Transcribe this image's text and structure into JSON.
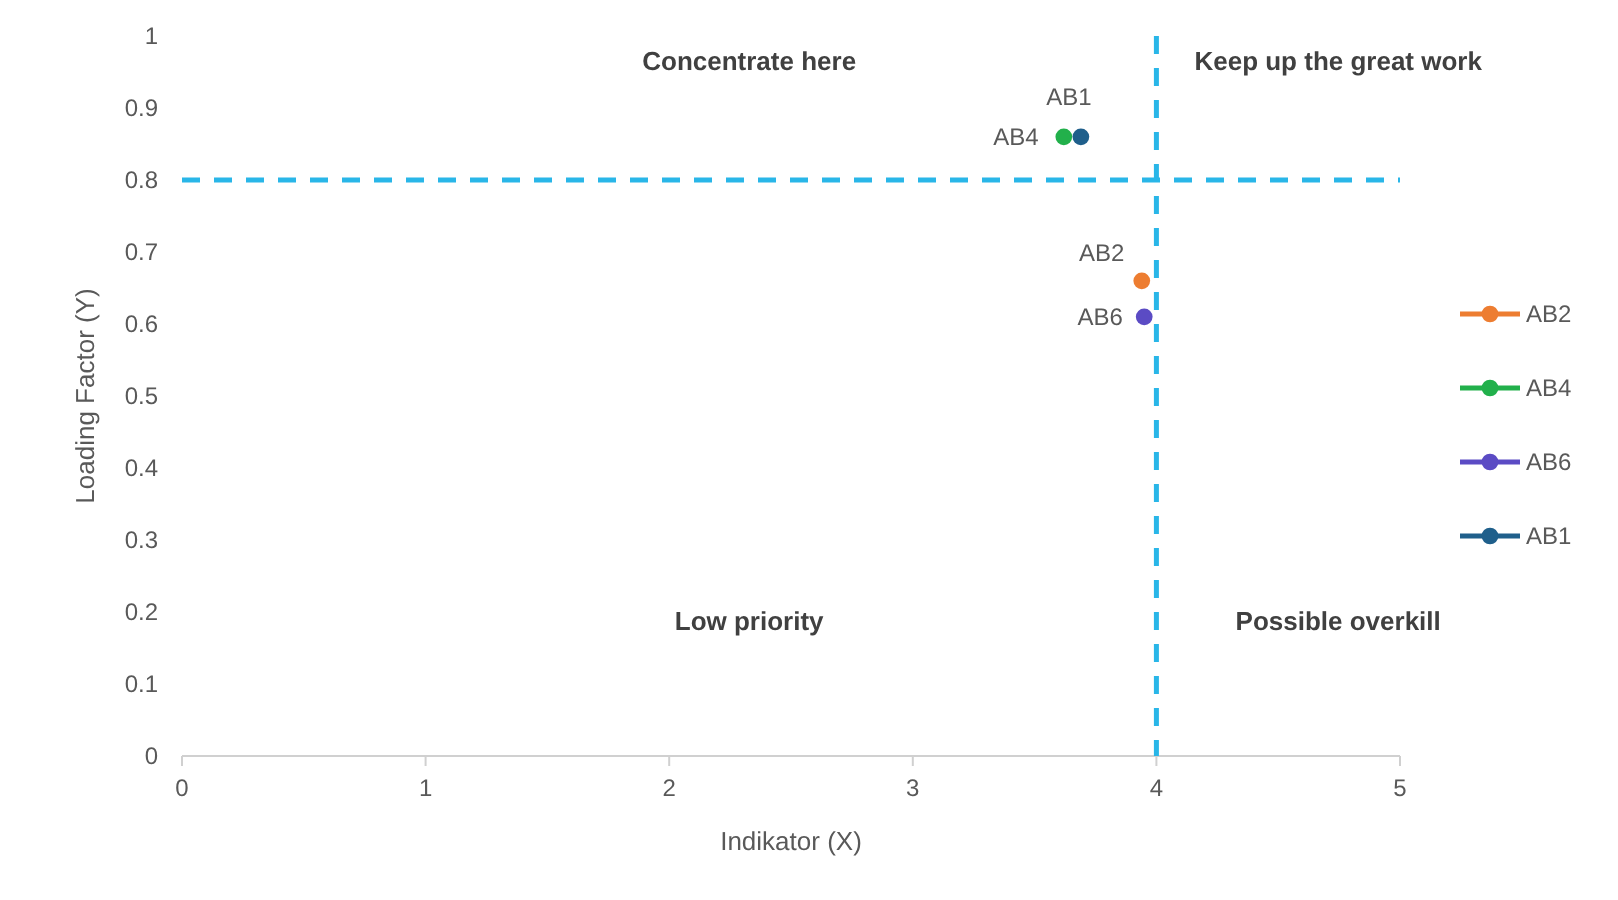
{
  "chart_data": {
    "type": "scatter",
    "xlabel": "Indikator (X)",
    "ylabel": "Loading Factor (Y)",
    "xlim": [
      0,
      5
    ],
    "xticks": [
      0,
      1,
      2,
      3,
      4,
      5
    ],
    "ylim": [
      0,
      1
    ],
    "yticks": [
      0,
      0.1,
      0.2,
      0.3,
      0.4,
      0.5,
      0.6,
      0.7,
      0.8,
      0.9,
      1
    ],
    "series": [
      {
        "name": "AB2",
        "color": "#ed7d31",
        "x": [
          3.94
        ],
        "values": [
          0.66
        ]
      },
      {
        "name": "AB4",
        "color": "#22b04b",
        "x": [
          3.62
        ],
        "values": [
          0.86
        ]
      },
      {
        "name": "AB6",
        "color": "#5b4bc4",
        "x": [
          3.95
        ],
        "values": [
          0.61
        ]
      },
      {
        "name": "AB1",
        "color": "#1f5f8b",
        "x": [
          3.69
        ],
        "values": [
          0.86
        ]
      }
    ],
    "ref_lines": [
      {
        "axis": "x",
        "value": 4,
        "color": "#29b6e8",
        "line_style": "dashed"
      },
      {
        "axis": "y",
        "value": 0.8,
        "color": "#29b6e8",
        "line_style": "dashed"
      }
    ],
    "annotations": [
      "Concentrate here",
      "Keep up the great work",
      "Low priority",
      "Possible overkill"
    ],
    "marker": "circle",
    "grid": false,
    "legend": "right"
  }
}
